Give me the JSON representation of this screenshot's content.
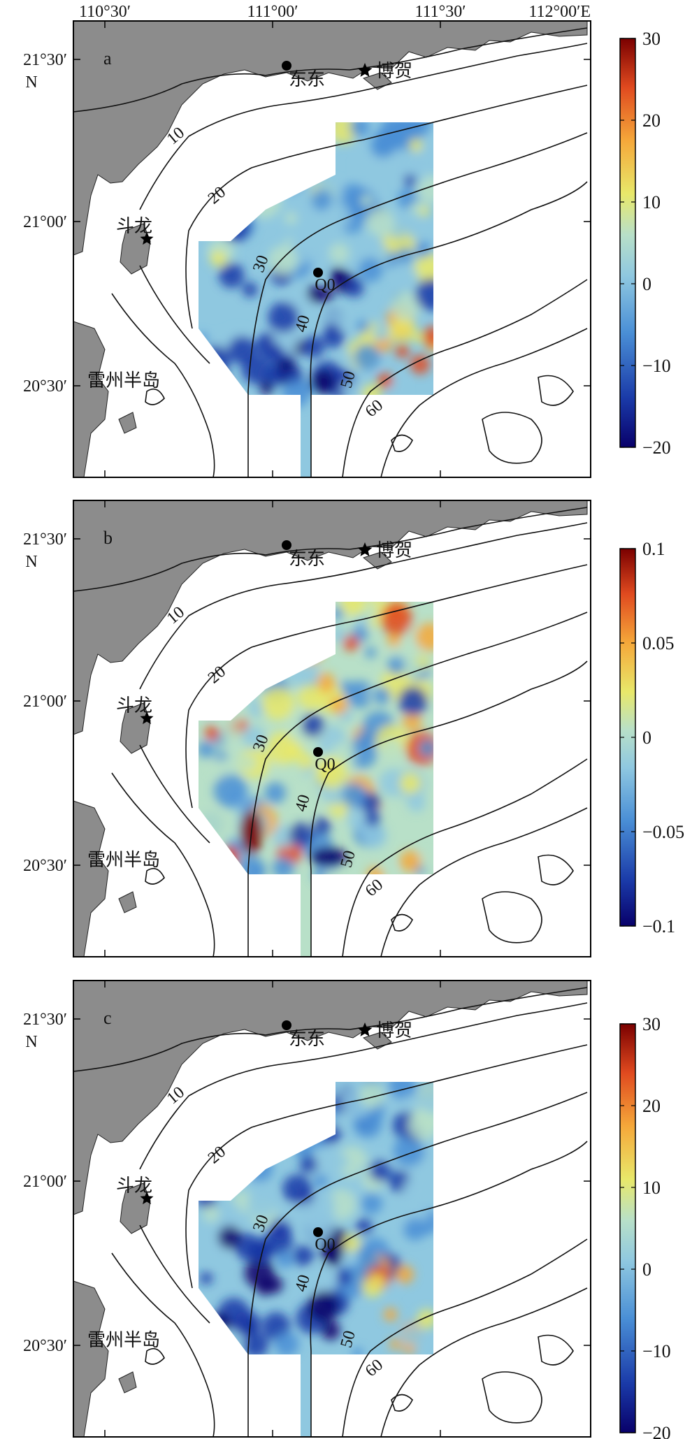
{
  "top_axis": {
    "lon_ticks": [
      "110°30′",
      "111°00′",
      "111°30′",
      "112°00′E"
    ]
  },
  "lat_ticks": [
    "21°30′",
    "21°00′",
    "20°30′"
  ],
  "lat_unit": "N",
  "panels": [
    {
      "letter": "a",
      "colorbar_ticks": [
        "30",
        "20",
        "10",
        "0",
        "−10",
        "−20"
      ]
    },
    {
      "letter": "b",
      "colorbar_ticks": [
        "0.1",
        "0.05",
        "0",
        "−0.05",
        "−0.1"
      ]
    },
    {
      "letter": "c",
      "colorbar_ticks": [
        "30",
        "20",
        "10",
        "0",
        "−10",
        "−20"
      ]
    }
  ],
  "places": {
    "dongshi": "东东",
    "bohe": "博贺",
    "doulong": "斗龙",
    "leizhou": "雷州半岛"
  },
  "contour_labels": [
    "10",
    "20",
    "30",
    "40",
    "50",
    "60",
    "Q0"
  ],
  "colors": {
    "land": "#8c8c8c",
    "colormap": [
      "#08006a",
      "#1a3aa8",
      "#4a8fd6",
      "#8fc8e0",
      "#b8e0c8",
      "#e8e86a",
      "#f5a83a",
      "#e04a1f",
      "#7a0000"
    ]
  }
}
